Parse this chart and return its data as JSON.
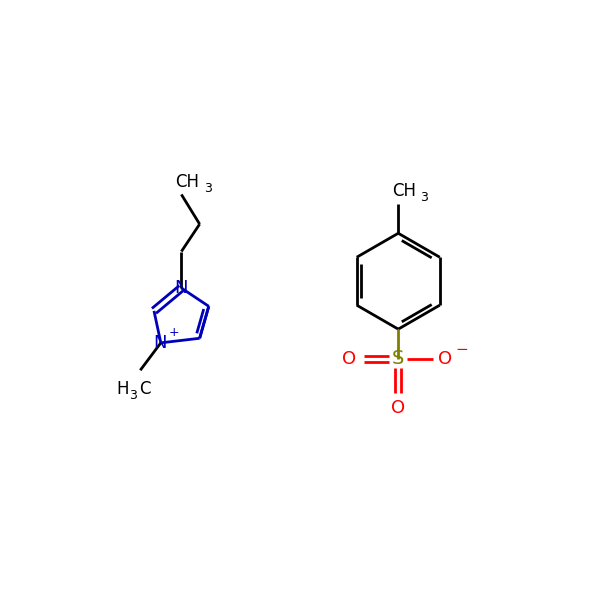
{
  "bg_color": "#ffffff",
  "bond_color": "#000000",
  "n_color": "#0000bb",
  "s_color": "#808000",
  "o_color": "#ff0000",
  "line_width": 2.0,
  "figsize": [
    5.9,
    5.93
  ],
  "dpi": 100,
  "xlim": [
    0,
    10
  ],
  "ylim": [
    0,
    10
  ]
}
